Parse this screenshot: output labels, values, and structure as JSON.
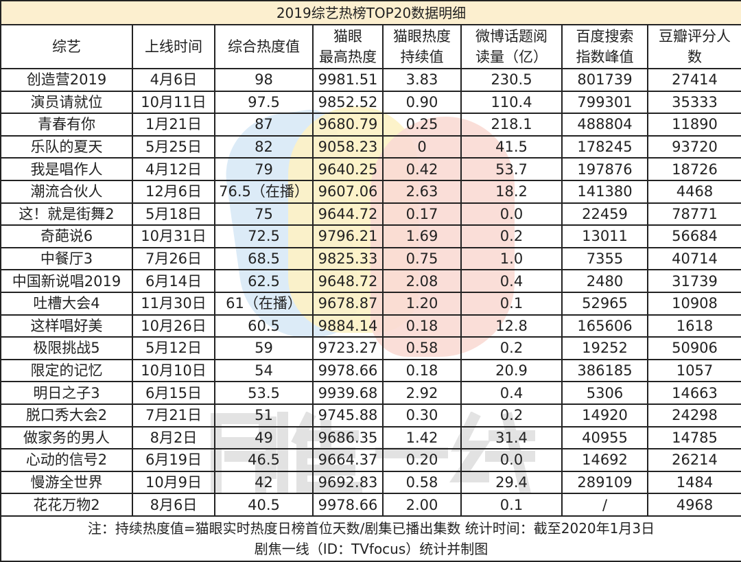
{
  "title": "2019综艺热榜TOP20数据明细",
  "columns": [
    "综艺",
    "上线时间",
    "综合热度值",
    "猫眼最高热度",
    "猫眼热度持续值",
    "微博话题阅读量（亿）",
    "百度搜索指数峰值",
    "豆瓣评分人数"
  ],
  "rows": [
    [
      "创造营2019",
      "4月6日",
      "98",
      "9981.51",
      "3.83",
      "230.5",
      "801739",
      "27414"
    ],
    [
      "演员请就位",
      "10月11日",
      "97.5",
      "9852.52",
      "0.90",
      "110.4",
      "799301",
      "35333"
    ],
    [
      "青春有你",
      "1月21日",
      "87",
      "9680.79",
      "0.25",
      "218.1",
      "488804",
      "11890"
    ],
    [
      "乐队的夏天",
      "5月25日",
      "82",
      "9058.23",
      "0",
      "41.5",
      "178245",
      "93720"
    ],
    [
      "我是唱作人",
      "4月12日",
      "79",
      "9640.25",
      "0.42",
      "53.7",
      "197876",
      "18726"
    ],
    [
      "潮流合伙人",
      "12月6日",
      "76.5（在播）",
      "9607.06",
      "2.63",
      "18.2",
      "141380",
      "4468"
    ],
    [
      "这！就是街舞2",
      "5月18日",
      "75",
      "9644.72",
      "0.17",
      "0.0",
      "22459",
      "78771"
    ],
    [
      "奇葩说6",
      "10月31日",
      "72.5",
      "9796.21",
      "1.69",
      "0.2",
      "13011",
      "56684"
    ],
    [
      "中餐厅3",
      "7月26日",
      "68.5",
      "9825.33",
      "0.75",
      "1.0",
      "7355",
      "40714"
    ],
    [
      "中国新说唱2019",
      "6月14日",
      "62.5",
      "9648.72",
      "2.08",
      "0.4",
      "2480",
      "31739"
    ],
    [
      "吐槽大会4",
      "11月30日",
      "61（在播）",
      "9678.87",
      "1.20",
      "0.1",
      "52965",
      "10908"
    ],
    [
      "这样唱好美",
      "10月26日",
      "60.5",
      "9884.14",
      "0.18",
      "12.8",
      "165606",
      "1618"
    ],
    [
      "极限挑战5",
      "5月12日",
      "59",
      "9723.27",
      "0.58",
      "0.2",
      "19252",
      "50906"
    ],
    [
      "限定的记忆",
      "10月10日",
      "54",
      "9978.66",
      "0.18",
      "20.9",
      "386185",
      "1057"
    ],
    [
      "明日之子3",
      "6月15日",
      "53.5",
      "9939.68",
      "2.92",
      "0.4",
      "5306",
      "14663"
    ],
    [
      "脱口秀大会2",
      "7月21日",
      "51",
      "9745.88",
      "0.30",
      "0.2",
      "14920",
      "24298"
    ],
    [
      "做家务的男人",
      "8月2日",
      "49",
      "9686.35",
      "1.42",
      "31.4",
      "40955",
      "14785"
    ],
    [
      "心动的信号2",
      "6月19日",
      "46.5",
      "9664.37",
      "0.20",
      "0.0",
      "14692",
      "26214"
    ],
    [
      "慢游全世界",
      "10月9日",
      "42",
      "9692.83",
      "0.58",
      "29.4",
      "289109",
      "1484"
    ],
    [
      "花花万物2",
      "8月6日",
      "40.5",
      "9978.66",
      "2.00",
      "0.1",
      "/",
      "4968"
    ]
  ],
  "footer": {
    "note": "注：持续热度值=猫眼实时热度日榜首位天数/剧集已播出集数   统计时间：截至2020年1月3日",
    "credit": "剧焦一线（ID：TVfocus）统计并制图"
  },
  "watermark": "剧焦一线",
  "colors": {
    "title_bg": "#fceecc",
    "border": "#222222"
  }
}
